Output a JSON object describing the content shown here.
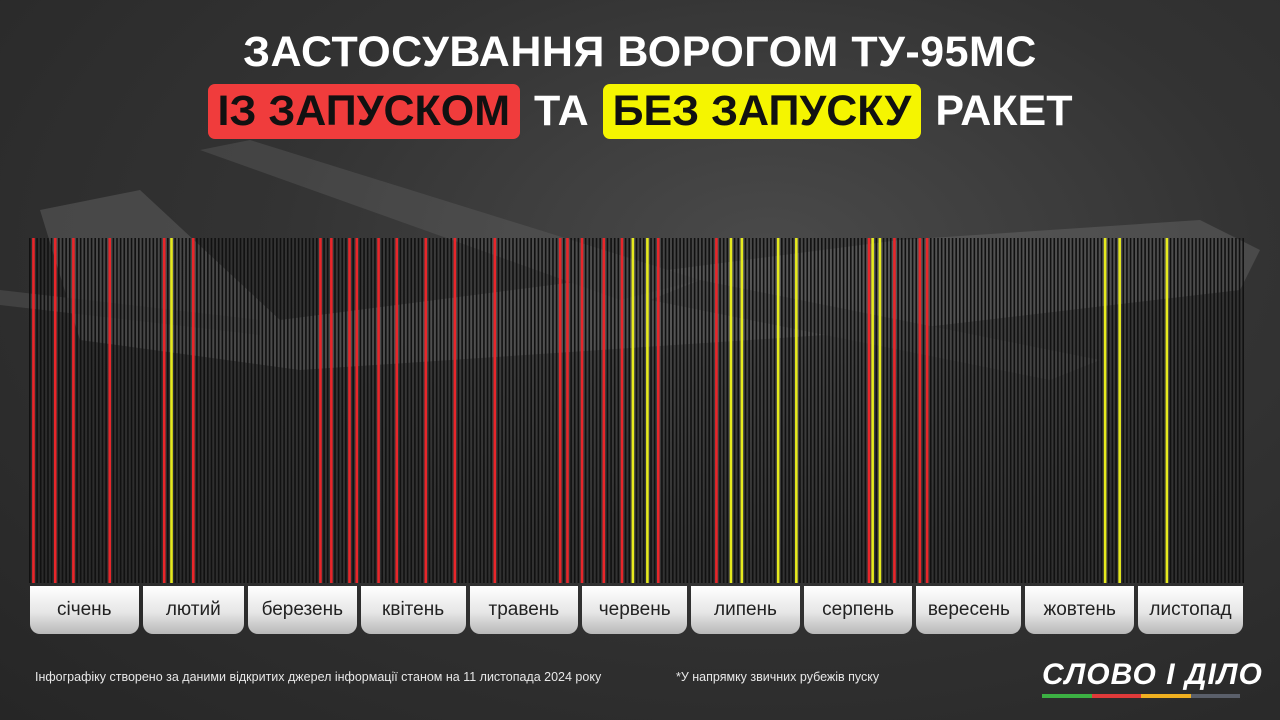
{
  "title": {
    "line1": "ЗАСТОСУВАННЯ ВОРОГОМ ТУ-95МС",
    "with_launch": "ІЗ ЗАПУСКОМ",
    "and": "ТА",
    "without_launch": "БЕЗ ЗАПУСКУ",
    "missiles": "РАКЕТ"
  },
  "colors": {
    "with_launch": "#e8262a",
    "without_launch": "#e6ea1e",
    "no_event": "#111111",
    "highlight_red": "#f03c3c",
    "highlight_yellow": "#f5f500"
  },
  "chart_data": {
    "type": "timeline",
    "x_range": [
      "2024-01-01",
      "2024-11-30"
    ],
    "months": [
      "січень",
      "лютий",
      "березень",
      "квітень",
      "травень",
      "червень",
      "липень",
      "серпень",
      "вересень",
      "жовтень",
      "листопад"
    ],
    "series": [
      {
        "name": "ІЗ ЗАПУСКОМ",
        "color": "#e8262a",
        "dates": [
          "2024-01-02",
          "2024-01-08",
          "2024-01-13",
          "2024-01-23",
          "2024-02-07",
          "2024-02-15",
          "2024-03-21",
          "2024-03-24",
          "2024-03-29",
          "2024-03-31",
          "2024-04-06",
          "2024-04-11",
          "2024-04-19",
          "2024-04-27",
          "2024-05-08",
          "2024-05-26",
          "2024-05-28",
          "2024-06-01",
          "2024-06-07",
          "2024-06-12",
          "2024-06-22",
          "2024-07-08",
          "2024-08-19",
          "2024-08-26",
          "2024-09-02",
          "2024-09-04"
        ]
      },
      {
        "name": "БЕЗ ЗАПУСКУ",
        "color": "#e6ea1e",
        "dates": [
          "2024-02-09",
          "2024-06-15",
          "2024-06-19",
          "2024-07-12",
          "2024-07-15",
          "2024-07-25",
          "2024-07-30",
          "2024-08-20",
          "2024-08-22",
          "2024-10-23",
          "2024-10-27",
          "2024-11-09"
        ]
      }
    ]
  },
  "footer": {
    "source": "Інфографіку створено за даними відкритих джерел інформації станом на 11 листопада 2024 року",
    "note": "*У напрямку звичних рубежів пуску"
  },
  "logo": {
    "text": "СЛОВО І ДІЛО",
    "bar_colors": [
      "#3cb043",
      "#e03a3a",
      "#f0b020",
      "#5a5f6a"
    ]
  }
}
